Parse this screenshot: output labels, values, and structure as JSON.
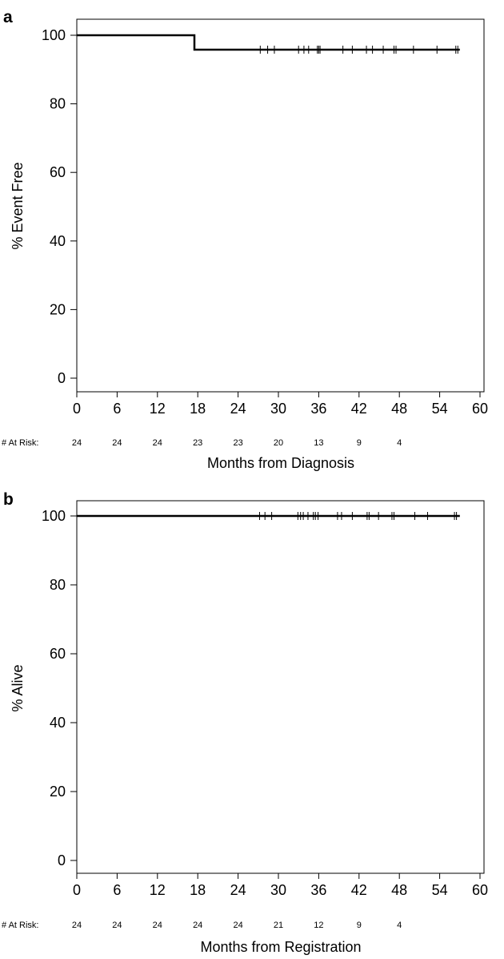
{
  "chart_data": [
    {
      "panel": "a",
      "type": "line",
      "subtype": "kaplan-meier",
      "xlabel": "Months from Diagnosis",
      "ylabel": "% Event Free",
      "xlim": [
        0,
        60
      ],
      "ylim": [
        0,
        100
      ],
      "xticks": [
        0,
        6,
        12,
        18,
        24,
        30,
        36,
        42,
        48,
        54,
        60
      ],
      "yticks": [
        0,
        20,
        40,
        60,
        80,
        100
      ],
      "grid": false,
      "series": [
        {
          "x": [
            0,
            17.5,
            17.5,
            57
          ],
          "y": [
            100,
            100,
            95.8,
            95.8
          ],
          "color": "#000000",
          "censored": [
            27.3,
            28.4,
            29.4,
            33.0,
            33.8,
            34.5,
            35.8,
            36.0,
            36.2,
            39.6,
            41.0,
            43.1,
            44.0,
            45.6,
            47.2,
            47.5,
            50.1,
            53.6,
            56.4,
            56.7
          ]
        }
      ],
      "at_risk": {
        "label": "# At Risk:",
        "times": [
          0,
          6,
          12,
          18,
          24,
          30,
          36,
          42,
          48
        ],
        "counts": [
          "24",
          "24",
          "24",
          "23",
          "23",
          "20",
          "13",
          "9",
          "4"
        ]
      }
    },
    {
      "panel": "b",
      "type": "line",
      "subtype": "kaplan-meier",
      "xlabel": "Months from Registration",
      "ylabel": "% Alive",
      "xlim": [
        0,
        60
      ],
      "ylim": [
        0,
        100
      ],
      "xticks": [
        0,
        6,
        12,
        18,
        24,
        30,
        36,
        42,
        48,
        54,
        60
      ],
      "yticks": [
        0,
        20,
        40,
        60,
        80,
        100
      ],
      "grid": false,
      "series": [
        {
          "x": [
            0,
            57
          ],
          "y": [
            100,
            100
          ],
          "color": "#000000",
          "censored": [
            27.2,
            28.0,
            29.0,
            32.9,
            33.3,
            33.7,
            34.4,
            35.2,
            35.5,
            35.9,
            38.8,
            39.4,
            41.0,
            43.2,
            43.5,
            44.9,
            46.9,
            47.2,
            50.3,
            52.2,
            56.2,
            56.5
          ]
        }
      ],
      "at_risk": {
        "label": "# At Risk:",
        "times": [
          0,
          6,
          12,
          18,
          24,
          30,
          36,
          42,
          48
        ],
        "counts": [
          "24",
          "24",
          "24",
          "24",
          "24",
          "21",
          "12",
          "9",
          "4"
        ]
      }
    }
  ]
}
